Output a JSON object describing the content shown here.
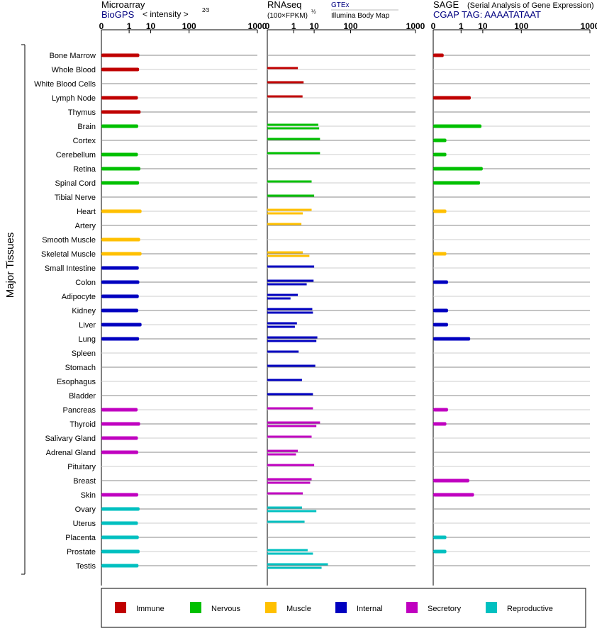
{
  "y_axis_label": "Major Tissues",
  "panels": [
    {
      "title": "Microarray",
      "subtitle": "BioGPS",
      "unit": "< intensity >",
      "unit_exp": "2⁄3",
      "note": ""
    },
    {
      "title": "RNAseq",
      "subtitle": "(100×FPKM)",
      "unit": "",
      "unit_exp": "½",
      "note": "GTEx",
      "note2": "Illumina Body Map"
    },
    {
      "title": "SAGE",
      "subtitle": "CGAP TAG: AAAATATAAT",
      "unit": "",
      "unit_exp": "",
      "note": "(Serial Analysis of Gene Expression)"
    }
  ],
  "tick_labels": [
    "0",
    "1",
    "10",
    "100",
    "1000"
  ],
  "legend": [
    {
      "key": "immune",
      "label": "Immune",
      "color": "#c00000"
    },
    {
      "key": "nervous",
      "label": "Nervous",
      "color": "#00c000"
    },
    {
      "key": "muscle",
      "label": "Muscle",
      "color": "#ffc000"
    },
    {
      "key": "internal",
      "label": "Internal",
      "color": "#0000c0"
    },
    {
      "key": "secretory",
      "label": "Secretory",
      "color": "#c000c0"
    },
    {
      "key": "reproductive",
      "label": "Reproductive",
      "color": "#00c0c0"
    }
  ],
  "chart_data": {
    "type": "bar",
    "orientation": "horizontal",
    "xscale": "power",
    "xlim": [
      0,
      1000
    ],
    "xticks": [
      0,
      1,
      10,
      100,
      1000
    ],
    "categories": [
      "Bone Marrow",
      "Whole Blood",
      "White Blood Cells",
      "Lymph Node",
      "Thymus",
      "Brain",
      "Cortex",
      "Cerebellum",
      "Retina",
      "Spinal Cord",
      "Tibial Nerve",
      "Heart",
      "Artery",
      "Smooth Muscle",
      "Skeletal Muscle",
      "Small Intestine",
      "Colon",
      "Adipocyte",
      "Kidney",
      "Liver",
      "Lung",
      "Spleen",
      "Stomach",
      "Esophagus",
      "Bladder",
      "Pancreas",
      "Thyroid",
      "Salivary Gland",
      "Adrenal Gland",
      "Pituitary",
      "Breast",
      "Skin",
      "Ovary",
      "Uterus",
      "Placenta",
      "Prostate",
      "Testis"
    ],
    "groups": [
      "immune",
      "immune",
      "immune",
      "immune",
      "immune",
      "nervous",
      "nervous",
      "nervous",
      "nervous",
      "nervous",
      "nervous",
      "muscle",
      "muscle",
      "muscle",
      "muscle",
      "internal",
      "internal",
      "internal",
      "internal",
      "internal",
      "internal",
      "internal",
      "internal",
      "internal",
      "internal",
      "secretory",
      "secretory",
      "secretory",
      "secretory",
      "secretory",
      "secretory",
      "secretory",
      "reproductive",
      "reproductive",
      "reproductive",
      "reproductive",
      "reproductive"
    ],
    "microarray": [
      3.5,
      3.4,
      null,
      3,
      4,
      3.1,
      null,
      3,
      3.9,
      3.4,
      null,
      4.4,
      null,
      3.8,
      4.4,
      3.3,
      3.5,
      3.3,
      3.1,
      4.4,
      3.4,
      null,
      null,
      null,
      null,
      2.9,
      3.8,
      3,
      3.1,
      null,
      null,
      3.1,
      3.6,
      3,
      3.3,
      3.6,
      3.2
    ],
    "rnaseq_gtex": [
      null,
      null,
      null,
      null,
      null,
      null,
      null,
      null,
      null,
      null,
      null,
      null,
      null,
      null,
      null,
      null,
      null,
      null,
      null,
      null,
      null,
      null,
      null,
      null,
      null,
      null,
      null,
      null,
      null,
      null,
      null,
      null,
      null,
      null,
      null,
      null,
      null
    ],
    "rnaseq_gtex_values": [
      [],
      [
        1.8
      ],
      [
        3.6
      ],
      [
        3.2
      ],
      [],
      [
        14,
        15
      ],
      [
        16
      ],
      [
        16
      ],
      [],
      [
        8
      ],
      [
        10
      ],
      [
        8,
        3.3
      ],
      [
        2.8
      ],
      [],
      [
        3.3,
        6.5
      ],
      [
        10
      ],
      [
        9.5,
        5
      ],
      [
        1.8,
        0.6
      ],
      [
        8.5,
        9
      ],
      [
        1.6,
        1.2
      ],
      [
        13,
        12
      ],
      [
        2
      ],
      [
        11
      ],
      [
        3
      ],
      [
        9
      ],
      [
        9
      ],
      [
        16,
        12
      ],
      [
        8
      ],
      [
        1.8,
        1.4
      ],
      [
        10
      ],
      [
        8,
        7
      ],
      [
        3.3
      ],
      [
        3,
        12
      ],
      [
        4
      ],
      [],
      [
        5.5,
        9
      ],
      [
        28,
        18
      ]
    ],
    "sage": [
      0.02,
      null,
      null,
      3.3,
      null,
      9,
      0.05,
      0.05,
      10,
      8,
      null,
      0.05,
      null,
      null,
      0.05,
      null,
      0.08,
      null,
      0.08,
      0.08,
      3.1,
      null,
      null,
      null,
      null,
      0.08,
      0.05,
      null,
      null,
      null,
      2.8,
      4.6,
      null,
      null,
      0.05,
      0.05,
      null
    ]
  }
}
